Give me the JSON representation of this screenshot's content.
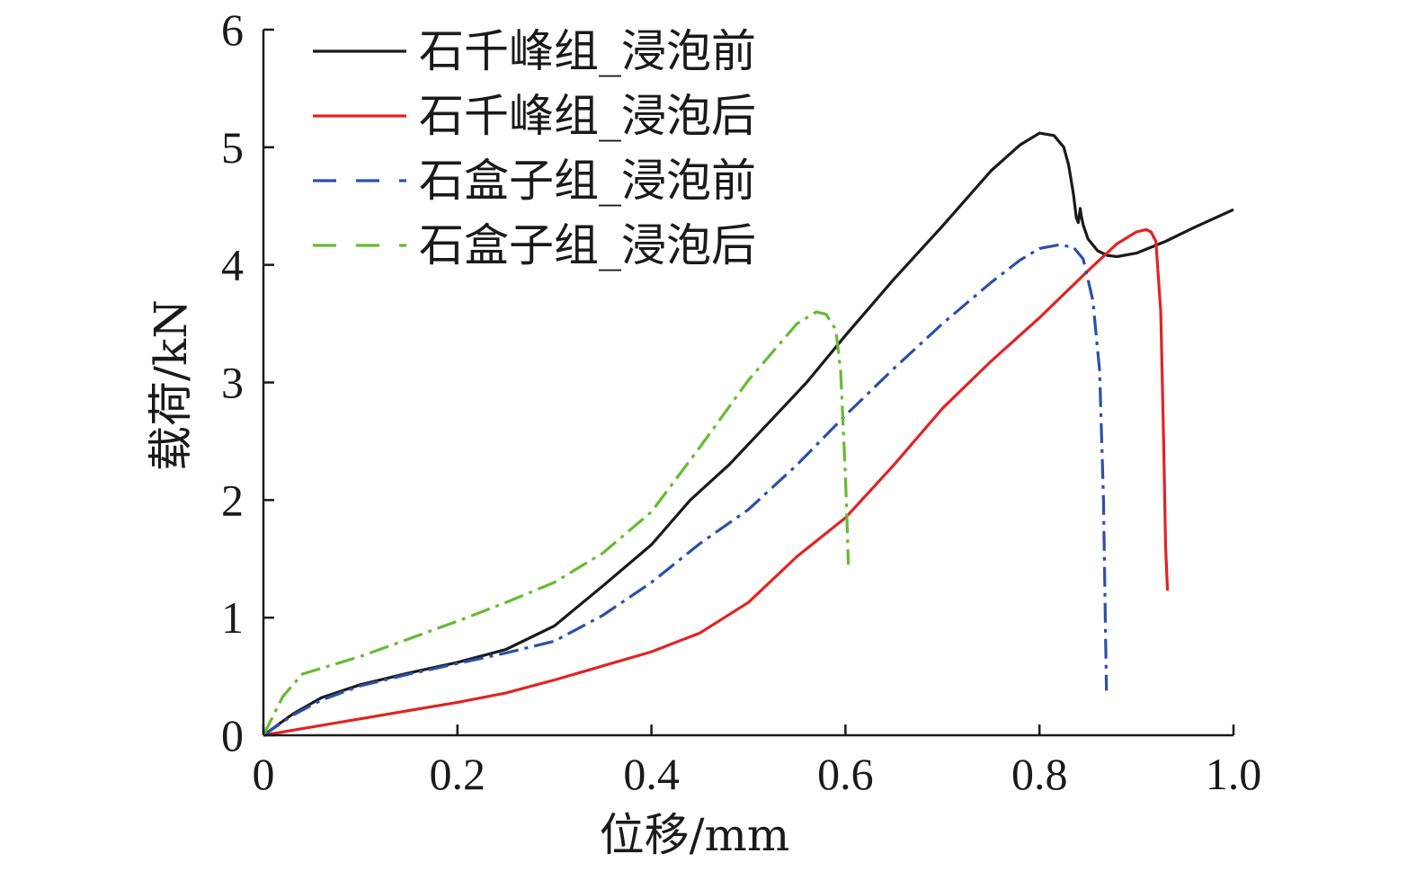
{
  "chart_data": {
    "type": "line",
    "xlabel": "位移/mm",
    "ylabel": "载荷/kN",
    "xlim": [
      0,
      1.0
    ],
    "ylim": [
      0,
      6
    ],
    "xticks": [
      "0",
      "0.2",
      "0.4",
      "0.6",
      "0.8",
      "1.0"
    ],
    "yticks": [
      "0",
      "1",
      "2",
      "3",
      "4",
      "5",
      "6"
    ],
    "grid": false,
    "legend_position": "top-left",
    "series": [
      {
        "name": "石千峰组_浸泡前",
        "color": "#1a1a1a",
        "dash": "solid",
        "x": [
          0,
          0.03,
          0.06,
          0.1,
          0.15,
          0.2,
          0.25,
          0.3,
          0.35,
          0.4,
          0.44,
          0.48,
          0.52,
          0.56,
          0.6,
          0.65,
          0.7,
          0.75,
          0.78,
          0.8,
          0.815,
          0.825,
          0.83,
          0.835,
          0.838,
          0.84,
          0.842,
          0.843,
          0.845,
          0.85,
          0.86,
          0.87,
          0.88,
          0.9,
          0.93,
          0.96,
          1.0
        ],
        "y": [
          0,
          0.18,
          0.32,
          0.43,
          0.53,
          0.62,
          0.73,
          0.93,
          1.27,
          1.62,
          2.0,
          2.3,
          2.65,
          3.0,
          3.4,
          3.88,
          4.33,
          4.8,
          5.02,
          5.12,
          5.1,
          5.0,
          4.85,
          4.6,
          4.4,
          4.36,
          4.48,
          4.42,
          4.34,
          4.22,
          4.12,
          4.08,
          4.07,
          4.1,
          4.2,
          4.32,
          4.47
        ]
      },
      {
        "name": "石千峰组_浸泡后",
        "color": "#e02424",
        "dash": "solid",
        "x": [
          0,
          0.05,
          0.1,
          0.15,
          0.2,
          0.25,
          0.3,
          0.35,
          0.4,
          0.45,
          0.5,
          0.55,
          0.6,
          0.65,
          0.7,
          0.75,
          0.8,
          0.85,
          0.88,
          0.9,
          0.91,
          0.915,
          0.92,
          0.925,
          0.928,
          0.93,
          0.932
        ],
        "y": [
          0,
          0.07,
          0.14,
          0.21,
          0.28,
          0.36,
          0.47,
          0.59,
          0.71,
          0.87,
          1.13,
          1.52,
          1.85,
          2.3,
          2.78,
          3.18,
          3.55,
          3.95,
          4.18,
          4.28,
          4.3,
          4.28,
          4.2,
          3.6,
          2.5,
          1.6,
          1.23
        ]
      },
      {
        "name": "石盒子组_浸泡前",
        "color": "#2e4fa8",
        "dash": "dashdot",
        "x": [
          0,
          0.03,
          0.06,
          0.1,
          0.15,
          0.2,
          0.25,
          0.3,
          0.35,
          0.4,
          0.45,
          0.5,
          0.55,
          0.6,
          0.65,
          0.7,
          0.75,
          0.78,
          0.8,
          0.82,
          0.835,
          0.845,
          0.855,
          0.862,
          0.866,
          0.868,
          0.869
        ],
        "y": [
          0,
          0.17,
          0.3,
          0.42,
          0.52,
          0.61,
          0.7,
          0.8,
          1.02,
          1.3,
          1.63,
          1.92,
          2.3,
          2.72,
          3.12,
          3.5,
          3.85,
          4.04,
          4.14,
          4.17,
          4.15,
          4.05,
          3.7,
          3.1,
          2.0,
          0.9,
          0.38
        ]
      },
      {
        "name": "石盒子组_浸泡后",
        "color": "#66bb33",
        "dash": "dashdot",
        "x": [
          0,
          0.02,
          0.04,
          0.06,
          0.1,
          0.15,
          0.2,
          0.25,
          0.3,
          0.35,
          0.4,
          0.45,
          0.5,
          0.55,
          0.57,
          0.58,
          0.59,
          0.595,
          0.6,
          0.602,
          0.603
        ],
        "y": [
          0,
          0.33,
          0.52,
          0.57,
          0.67,
          0.82,
          0.97,
          1.13,
          1.3,
          1.55,
          1.9,
          2.45,
          3.02,
          3.5,
          3.6,
          3.58,
          3.45,
          3.1,
          2.2,
          1.7,
          1.45
        ]
      }
    ]
  }
}
